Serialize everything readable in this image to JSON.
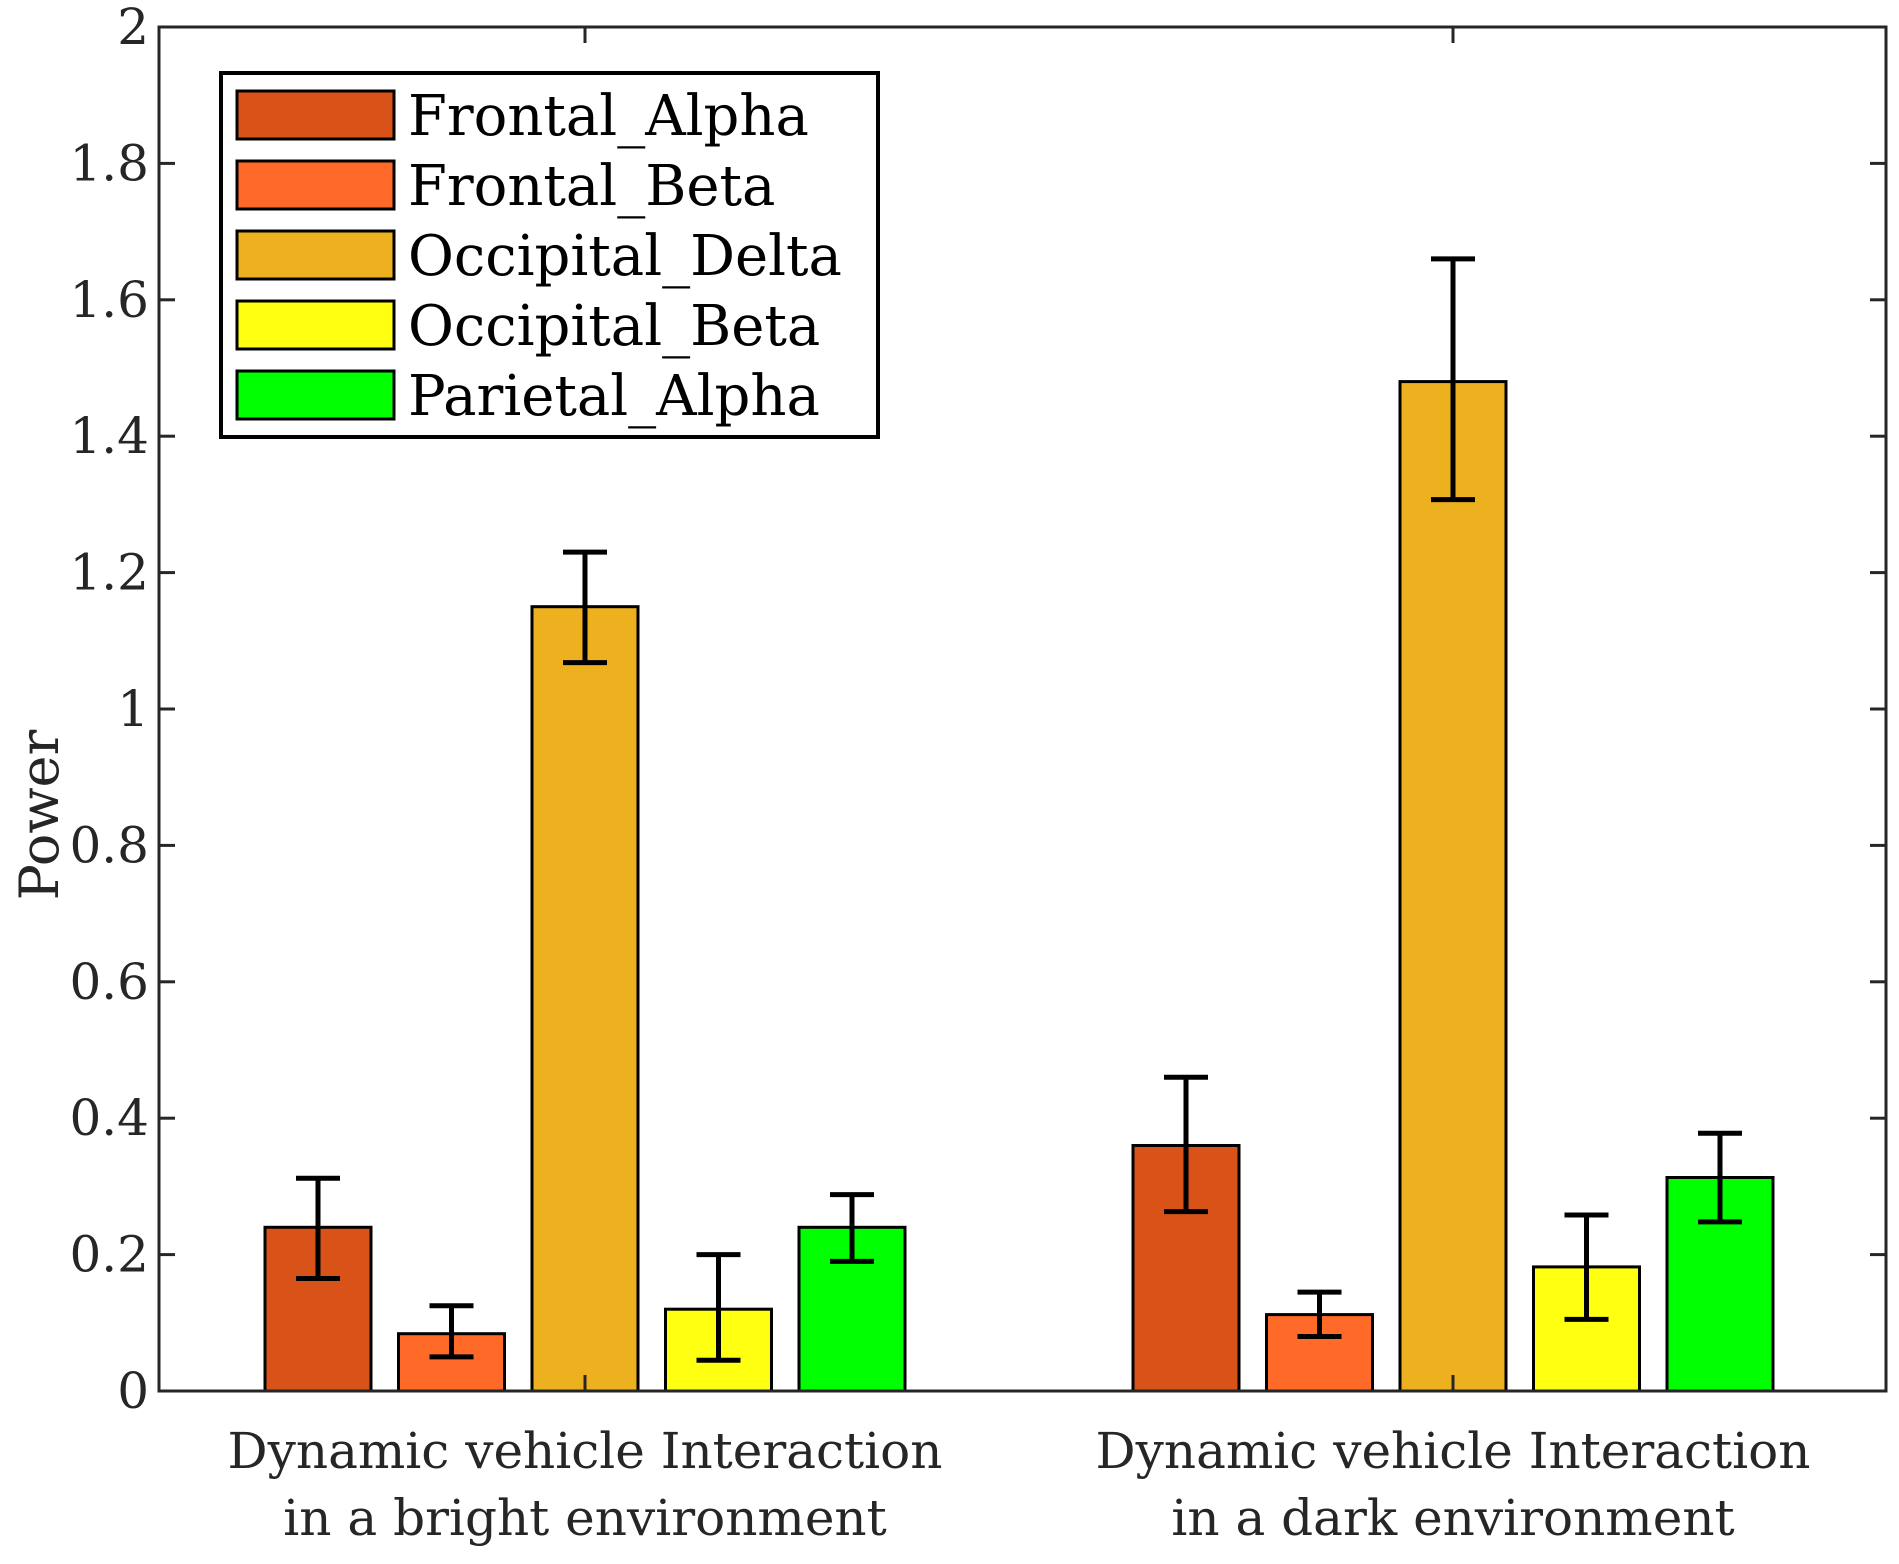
{
  "chart_data": {
    "type": "bar",
    "title": "",
    "xlabel": "",
    "ylabel": "Power",
    "ylim": [
      0,
      2
    ],
    "yticks": [
      0,
      0.2,
      0.4,
      0.6,
      0.8,
      1,
      1.2,
      1.4,
      1.6,
      1.8,
      2
    ],
    "ytick_labels": [
      "0",
      "0.2",
      "0.4",
      "0.6",
      "0.8",
      "1",
      "1.2",
      "1.4",
      "1.6",
      "1.8",
      "2"
    ],
    "categories": [
      [
        "Dynamic vehicle Interaction",
        "in a bright environment"
      ],
      [
        "Dynamic vehicle Interaction",
        "in a dark environment"
      ]
    ],
    "series": [
      {
        "name": "Frontal_Alpha",
        "color": "#D95319",
        "values": [
          0.24,
          0.36
        ],
        "error_low": [
          0.165,
          0.263
        ],
        "error_high": [
          0.312,
          0.46
        ]
      },
      {
        "name": "Frontal_Beta",
        "color": "#FF6A29",
        "values": [
          0.084,
          0.112
        ],
        "error_low": [
          0.05,
          0.08
        ],
        "error_high": [
          0.125,
          0.145
        ]
      },
      {
        "name": "Occipital_Delta",
        "color": "#EDB120",
        "values": [
          1.15,
          1.48
        ],
        "error_low": [
          1.068,
          1.307
        ],
        "error_high": [
          1.23,
          1.66
        ]
      },
      {
        "name": "Occipital_Beta",
        "color": "#FFFF11",
        "values": [
          0.12,
          0.182
        ],
        "error_low": [
          0.045,
          0.105
        ],
        "error_high": [
          0.2,
          0.258
        ]
      },
      {
        "name": "Parietal_Alpha",
        "color": "#00FF00",
        "values": [
          0.24,
          0.313
        ],
        "error_low": [
          0.19,
          0.248
        ],
        "error_high": [
          0.288,
          0.378
        ]
      }
    ],
    "grid": false,
    "legend_position": "top-left"
  }
}
